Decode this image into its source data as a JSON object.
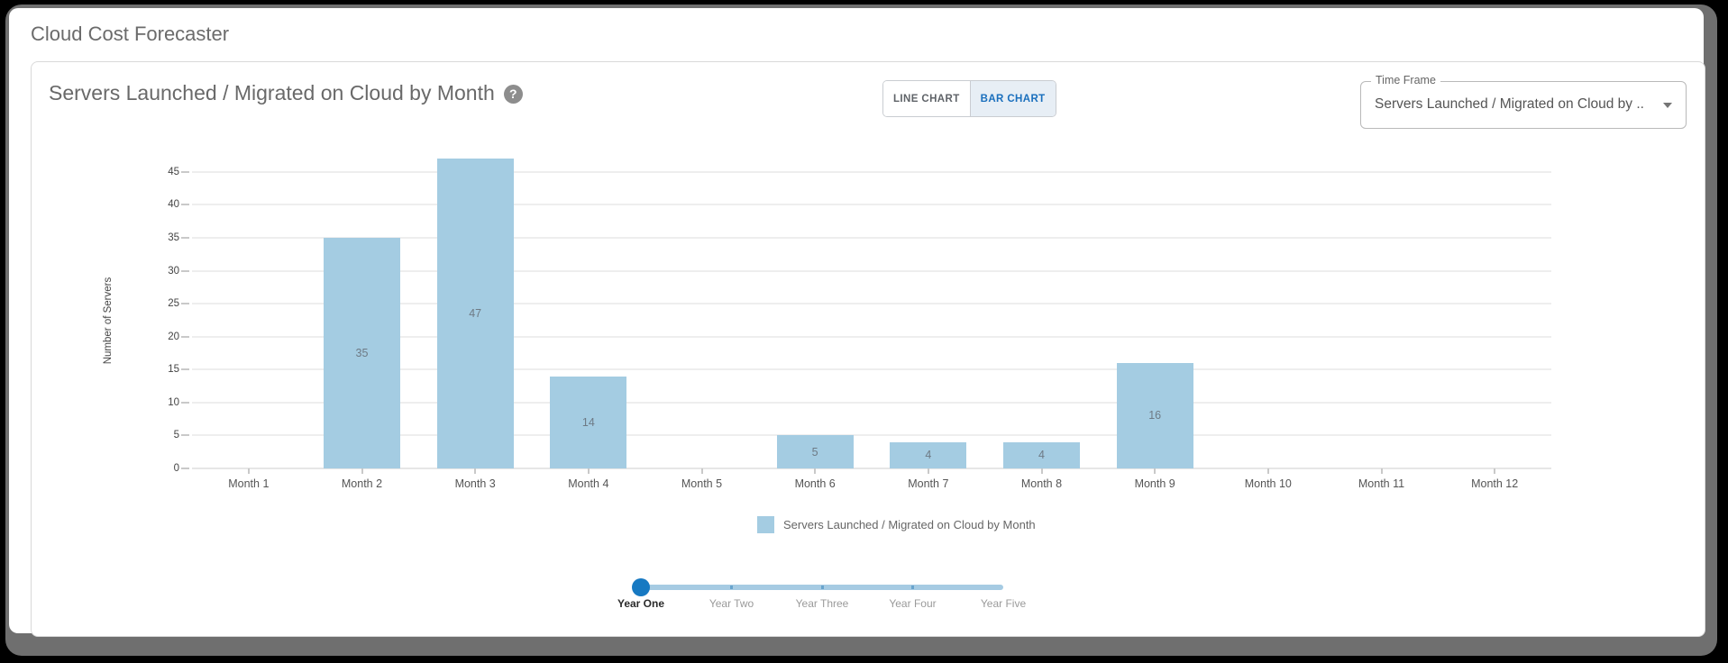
{
  "app": {
    "title": "Cloud Cost Forecaster"
  },
  "card": {
    "title": "Servers Launched / Migrated on Cloud by Month",
    "help_glyph": "?",
    "toggle": {
      "line": "LINE CHART",
      "bar": "BAR CHART",
      "active": "BAR CHART"
    },
    "time_frame": {
      "label": "Time Frame",
      "value": "Servers Launched / Migrated on Cloud by ..."
    }
  },
  "chart_data": {
    "type": "bar",
    "title": "Servers Launched / Migrated on Cloud by Month",
    "categories": [
      "Month 1",
      "Month 2",
      "Month 3",
      "Month 4",
      "Month 5",
      "Month 6",
      "Month 7",
      "Month 8",
      "Month 9",
      "Month 10",
      "Month 11",
      "Month 12"
    ],
    "values": [
      0,
      35,
      47,
      14,
      0,
      5,
      4,
      4,
      16,
      0,
      0,
      0
    ],
    "bar_value_labels_shown": true,
    "xlabel": "",
    "ylabel": "Number of Servers",
    "ylim": [
      0,
      49.9
    ],
    "yticks": [
      0,
      5,
      10,
      15,
      20,
      25,
      30,
      35,
      40,
      45
    ],
    "grid": true,
    "bar_color": "#a4cce2",
    "legend": {
      "position": "bottom",
      "label": "Servers Launched / Migrated on Cloud by Month",
      "swatch_color": "#a4cce2"
    }
  },
  "slider": {
    "options": [
      "Year One",
      "Year Two",
      "Year Three",
      "Year Four",
      "Year Five"
    ],
    "selected": "Year One",
    "selected_index": 0,
    "handle_color": "#1779c2",
    "track_color": "#a6cbe3"
  },
  "colors": {
    "frame_gray": "#6f6f6f",
    "title_gray": "#696969",
    "toggle_active_bg": "#e7eef5",
    "toggle_active_text": "#1a6fbd",
    "gridline": "#eeeeee",
    "bar_fill": "#a4cce2",
    "bar_value_text": "#6e7a85"
  }
}
